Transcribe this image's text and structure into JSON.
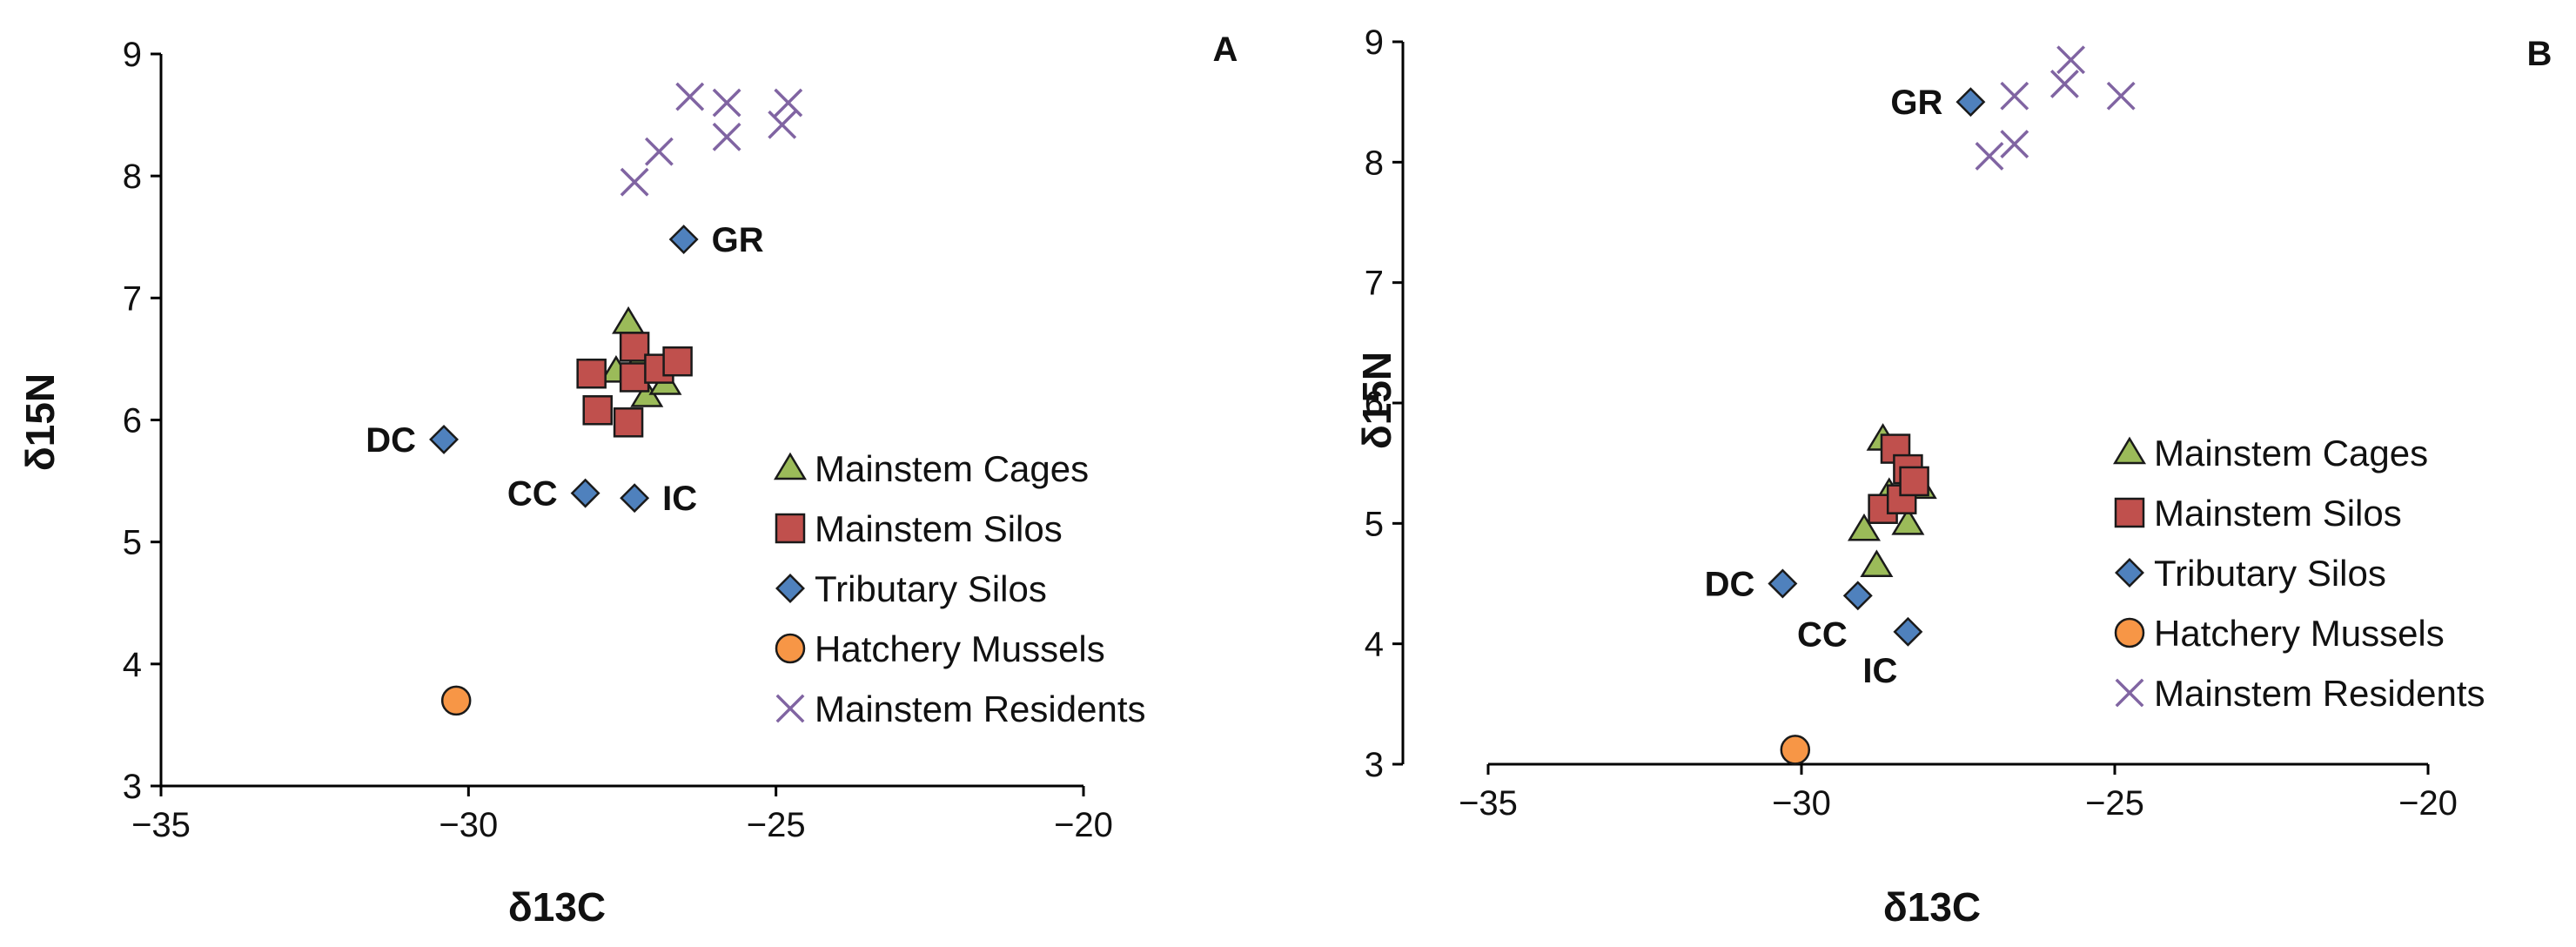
{
  "chart_data": [
    {
      "panel": "A",
      "type": "scatter",
      "xlabel": "δ13C",
      "ylabel": "δ15N",
      "xlim": [
        -35,
        -20
      ],
      "ylim": [
        3,
        9
      ],
      "x_ticks": [
        "-35",
        "-30",
        "-25",
        "-20"
      ],
      "y_ticks": [
        "3",
        "4",
        "5",
        "6",
        "7",
        "8",
        "9"
      ],
      "legend_position": "lower-right",
      "series": [
        {
          "name": "Mainstem Cages",
          "marker": "triangle",
          "color": "#9bbb59",
          "points": [
            [
              -27.4,
              6.8
            ],
            [
              -27.1,
              6.2
            ],
            [
              -26.8,
              6.3
            ],
            [
              -27.6,
              6.4
            ],
            [
              -27.2,
              6.5
            ]
          ]
        },
        {
          "name": "Mainstem Silos",
          "marker": "square",
          "color": "#c0504d",
          "points": [
            [
              -28.0,
              6.38
            ],
            [
              -27.9,
              6.08
            ],
            [
              -27.3,
              6.6
            ],
            [
              -27.3,
              6.35
            ],
            [
              -26.9,
              6.42
            ],
            [
              -26.6,
              6.48
            ],
            [
              -27.4,
              5.98
            ]
          ]
        },
        {
          "name": "Tributary Silos",
          "marker": "diamond",
          "color": "#4f81bd",
          "points": [
            [
              -26.5,
              7.48
            ],
            [
              -30.4,
              5.84
            ],
            [
              -28.1,
              5.4
            ],
            [
              -27.3,
              5.36
            ]
          ]
        },
        {
          "name": "Hatchery Mussels",
          "marker": "circle",
          "color": "#f79646",
          "points": [
            [
              -30.2,
              3.7
            ]
          ]
        },
        {
          "name": "Mainstem Residents",
          "marker": "x",
          "color": "#8064a2",
          "points": [
            [
              -27.3,
              7.95
            ],
            [
              -26.9,
              8.2
            ],
            [
              -26.4,
              8.65
            ],
            [
              -25.8,
              8.6
            ],
            [
              -25.8,
              8.32
            ],
            [
              -24.8,
              8.6
            ],
            [
              -24.9,
              8.42
            ]
          ]
        }
      ],
      "annotations": [
        {
          "text": "GR",
          "x": -26.5,
          "y": 7.48,
          "anchor": "right"
        },
        {
          "text": "DC",
          "x": -30.4,
          "y": 5.84,
          "anchor": "left"
        },
        {
          "text": "CC",
          "x": -28.1,
          "y": 5.4,
          "anchor": "left"
        },
        {
          "text": "IC",
          "x": -27.3,
          "y": 5.36,
          "anchor": "right"
        }
      ]
    },
    {
      "panel": "B",
      "type": "scatter",
      "xlabel": "δ13C",
      "ylabel": "δ15N",
      "xlim": [
        -35,
        -20
      ],
      "ylim": [
        3,
        9
      ],
      "x_ticks": [
        "-35",
        "-30",
        "-25",
        "-20"
      ],
      "y_ticks": [
        "3",
        "4",
        "5",
        "6",
        "7",
        "8",
        "9"
      ],
      "legend_position": "lower-right",
      "series": [
        {
          "name": "Mainstem Cages",
          "marker": "triangle",
          "color": "#9bbb59",
          "points": [
            [
              -28.7,
              5.7
            ],
            [
              -29.0,
              4.95
            ],
            [
              -28.8,
              4.65
            ],
            [
              -28.3,
              5.0
            ],
            [
              -28.1,
              5.3
            ],
            [
              -28.6,
              5.25
            ]
          ]
        },
        {
          "name": "Mainstem Silos",
          "marker": "square",
          "color": "#c0504d",
          "points": [
            [
              -28.5,
              5.62
            ],
            [
              -28.3,
              5.45
            ],
            [
              -28.7,
              5.12
            ],
            [
              -28.4,
              5.2
            ],
            [
              -28.2,
              5.35
            ]
          ]
        },
        {
          "name": "Tributary Silos",
          "marker": "diamond",
          "color": "#4f81bd",
          "points": [
            [
              -27.3,
              8.5
            ],
            [
              -30.3,
              4.5
            ],
            [
              -29.1,
              4.4
            ],
            [
              -28.3,
              4.1
            ]
          ]
        },
        {
          "name": "Hatchery Mussels",
          "marker": "circle",
          "color": "#f79646",
          "points": [
            [
              -30.1,
              3.12
            ]
          ]
        },
        {
          "name": "Mainstem Residents",
          "marker": "x",
          "color": "#8064a2",
          "points": [
            [
              -27.0,
              8.05
            ],
            [
              -26.6,
              8.15
            ],
            [
              -26.6,
              8.55
            ],
            [
              -25.8,
              8.65
            ],
            [
              -25.7,
              8.85
            ],
            [
              -24.9,
              8.55
            ]
          ]
        }
      ],
      "annotations": [
        {
          "text": "GR",
          "x": -27.3,
          "y": 8.5,
          "anchor": "left"
        },
        {
          "text": "DC",
          "x": -30.3,
          "y": 4.5,
          "anchor": "left"
        },
        {
          "text": "CC",
          "x": -29.1,
          "y": 4.4,
          "anchor": "below-left"
        },
        {
          "text": "IC",
          "x": -28.3,
          "y": 4.1,
          "anchor": "below-left"
        }
      ]
    }
  ]
}
